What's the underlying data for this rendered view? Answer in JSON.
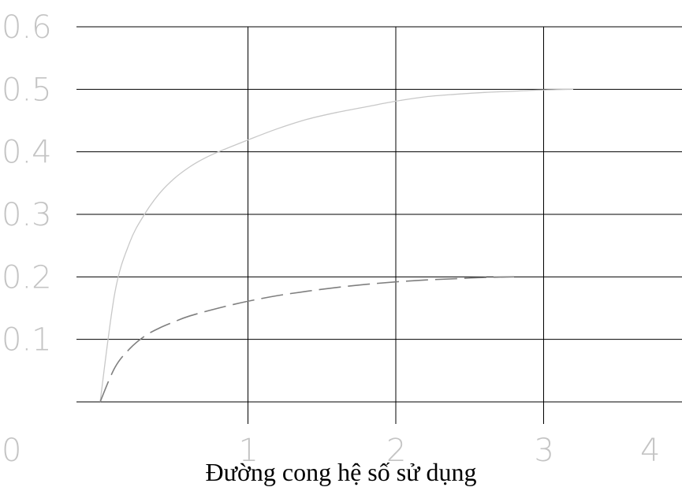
{
  "caption": "Đường cong hệ số sử dụng",
  "chart_data": {
    "type": "line",
    "title": "",
    "xlabel": "",
    "ylabel": "",
    "xlim": [
      0,
      4
    ],
    "ylim": [
      0,
      0.6
    ],
    "x_ticks": [
      {
        "value": 0,
        "label": "0"
      },
      {
        "value": 1,
        "label": "1"
      },
      {
        "value": 2,
        "label": "2"
      },
      {
        "value": 3,
        "label": "3"
      },
      {
        "value": 4,
        "label": "4"
      }
    ],
    "y_ticks": [
      {
        "value": 0.1,
        "label": "0.1"
      },
      {
        "value": 0.2,
        "label": "0.2"
      },
      {
        "value": 0.3,
        "label": "0.3"
      },
      {
        "value": 0.4,
        "label": "0.4"
      },
      {
        "value": 0.5,
        "label": "0.5"
      },
      {
        "value": 0.6,
        "label": "0.6"
      }
    ],
    "grid": true,
    "series": [
      {
        "style": "solid",
        "color": "#c8c8c8",
        "x": [
          0.0,
          0.1,
          0.2,
          0.3,
          0.4,
          0.5,
          0.6,
          0.7,
          0.8,
          1.0,
          1.2,
          1.4,
          1.6,
          1.8,
          2.0,
          2.2,
          2.4,
          2.6,
          2.8,
          3.0,
          3.2
        ],
        "y": [
          0.0,
          0.175,
          0.255,
          0.3,
          0.333,
          0.357,
          0.375,
          0.389,
          0.4,
          0.419,
          0.437,
          0.452,
          0.463,
          0.472,
          0.481,
          0.488,
          0.492,
          0.495,
          0.497,
          0.499,
          0.5
        ]
      },
      {
        "style": "dashed",
        "color": "#7f7f7f",
        "x": [
          0.0,
          0.1,
          0.2,
          0.3,
          0.4,
          0.5,
          0.6,
          0.8,
          1.0,
          1.2,
          1.4,
          1.6,
          1.8,
          2.0,
          2.2,
          2.4,
          2.6,
          2.8
        ],
        "y": [
          0.0,
          0.055,
          0.085,
          0.105,
          0.118,
          0.128,
          0.137,
          0.15,
          0.161,
          0.17,
          0.177,
          0.183,
          0.188,
          0.192,
          0.195,
          0.197,
          0.199,
          0.2
        ]
      }
    ]
  }
}
